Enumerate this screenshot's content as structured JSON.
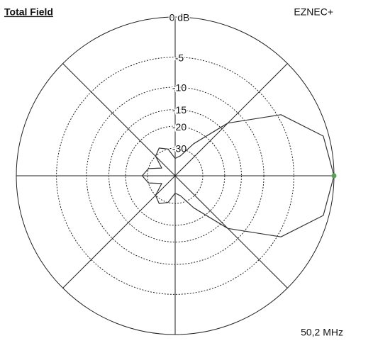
{
  "chart_data": {
    "type": "polar",
    "title": "Total Field",
    "subtitle": "EZNEC+",
    "annotation": "50,2 MHz",
    "scale": "arrl-log",
    "x": [
      0,
      15,
      30,
      45,
      60,
      75,
      90,
      105,
      120,
      135,
      150,
      165,
      180,
      195,
      210,
      225,
      240,
      255,
      270,
      285,
      300,
      315,
      330,
      345
    ],
    "values": [
      0,
      -0.6,
      -4.5,
      -13,
      -25,
      -35,
      -38,
      -30,
      -27.5,
      -30,
      -40,
      -30,
      -27,
      -30,
      -40,
      -30,
      -27.5,
      -30,
      -38,
      -35,
      -25,
      -13,
      -4.5,
      -0.6
    ],
    "color": "#333333",
    "marker_color": "#5aa05a",
    "ylim": [
      -60,
      0
    ],
    "yticks": [
      {
        "value": 0,
        "label": "0 dB"
      },
      -5,
      -10,
      -15,
      -20,
      -30
    ],
    "spokes": [
      0,
      45,
      90,
      135,
      180,
      225,
      270,
      315
    ],
    "grid": true
  }
}
